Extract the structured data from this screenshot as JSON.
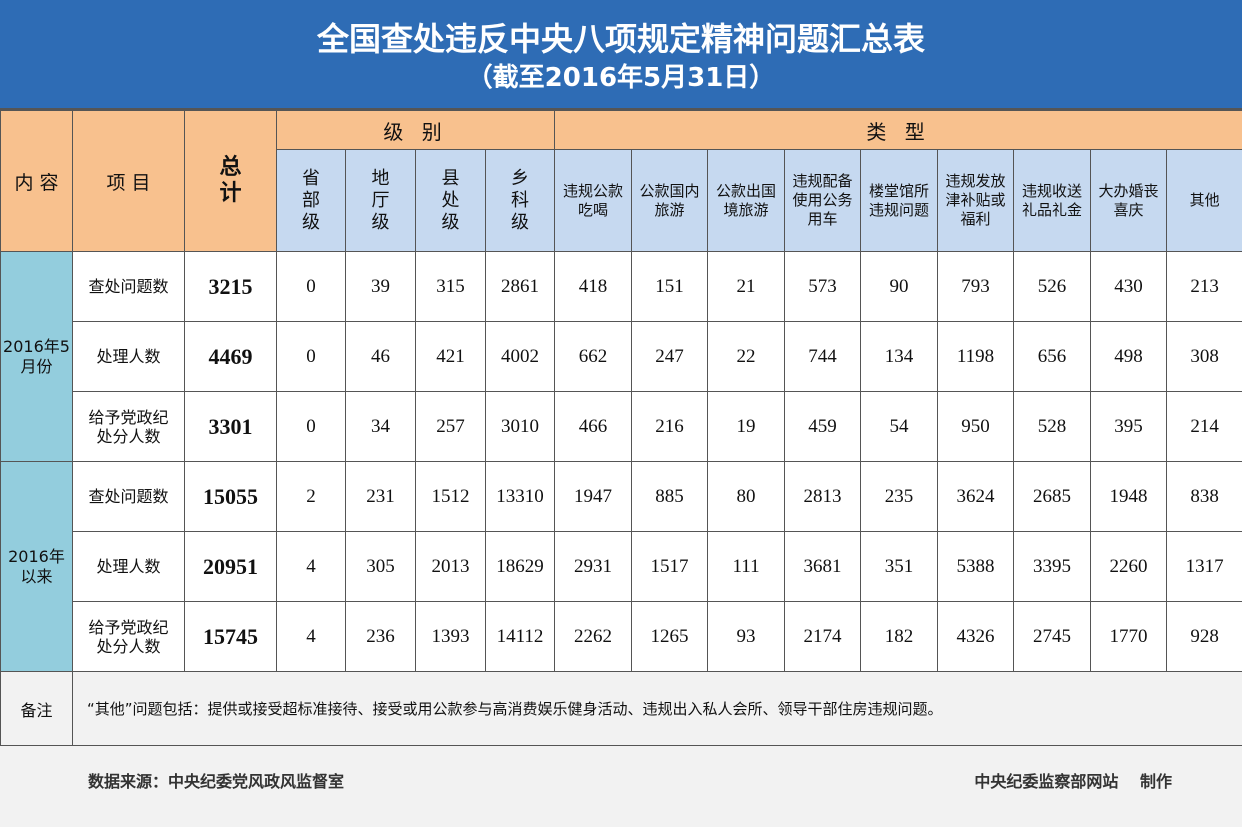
{
  "title": "全国查处违反中央八项规定精神问题汇总表",
  "subtitle": "（截至2016年5月31日）",
  "headers": {
    "content": "内 容",
    "item": "项 目",
    "total": "总计",
    "level_group": "级 别",
    "type_group": "类 型",
    "levels": [
      "省部级",
      "地厅级",
      "县处级",
      "乡科级"
    ],
    "types": [
      "违规公款吃喝",
      "公款国内旅游",
      "公款出国境旅游",
      "违规配备使用公务用车",
      "楼堂馆所违规问题",
      "违规发放津补贴或福利",
      "违规收送礼品礼金",
      "大办婚丧喜庆",
      "其他"
    ]
  },
  "groups": [
    {
      "label": "2016年5月份",
      "rows": [
        {
          "item": "查处问题数",
          "total": "3215",
          "levels": [
            "0",
            "39",
            "315",
            "2861"
          ],
          "types": [
            "418",
            "151",
            "21",
            "573",
            "90",
            "793",
            "526",
            "430",
            "213"
          ]
        },
        {
          "item": "处理人数",
          "total": "4469",
          "levels": [
            "0",
            "46",
            "421",
            "4002"
          ],
          "types": [
            "662",
            "247",
            "22",
            "744",
            "134",
            "1198",
            "656",
            "498",
            "308"
          ]
        },
        {
          "item": "给予党政纪处分人数",
          "total": "3301",
          "levels": [
            "0",
            "34",
            "257",
            "3010"
          ],
          "types": [
            "466",
            "216",
            "19",
            "459",
            "54",
            "950",
            "528",
            "395",
            "214"
          ]
        }
      ]
    },
    {
      "label": "2016年以来",
      "rows": [
        {
          "item": "查处问题数",
          "total": "15055",
          "levels": [
            "2",
            "231",
            "1512",
            "13310"
          ],
          "types": [
            "1947",
            "885",
            "80",
            "2813",
            "235",
            "3624",
            "2685",
            "1948",
            "838"
          ]
        },
        {
          "item": "处理人数",
          "total": "20951",
          "levels": [
            "4",
            "305",
            "2013",
            "18629"
          ],
          "types": [
            "2931",
            "1517",
            "111",
            "3681",
            "351",
            "5388",
            "3395",
            "2260",
            "1317"
          ]
        },
        {
          "item": "给予党政纪处分人数",
          "total": "15745",
          "levels": [
            "4",
            "236",
            "1393",
            "14112"
          ],
          "types": [
            "2262",
            "1265",
            "93",
            "2174",
            "182",
            "4326",
            "2745",
            "1770",
            "928"
          ]
        }
      ]
    }
  ],
  "remark": {
    "label": "备注",
    "text": "“其他”问题包括：提供或接受超标准接待、接受或用公款参与高消费娱乐健身活动、违规出入私人会所、领导干部住房违规问题。"
  },
  "footer": {
    "source": "数据来源：中央纪委党风政风监督室",
    "producer": "中央纪委监察部网站　 制作"
  },
  "colors": {
    "title_bg": "#2e6cb5",
    "header_orange": "#f8c18e",
    "header_blue": "#c6d9f0",
    "group_bg": "#93cddd"
  }
}
